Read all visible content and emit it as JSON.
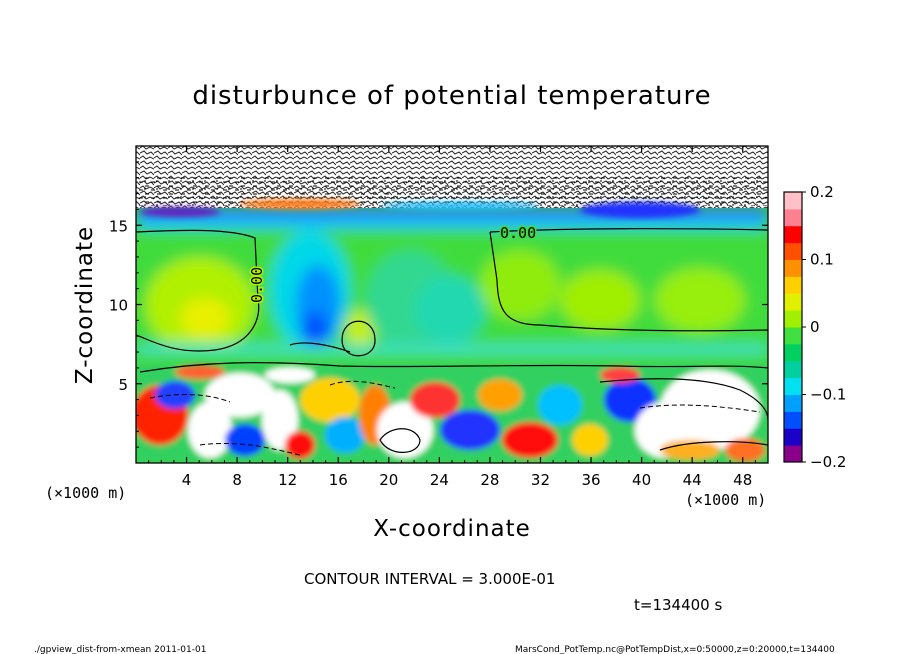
{
  "chart_data": {
    "type": "heatmap",
    "title": "disturbunce of potential temperature",
    "xlabel": "X-coordinate",
    "ylabel": "Z-coordinate",
    "x_unit_left": "(×1000 m)",
    "x_unit_right": "(×1000 m)",
    "xlim": [
      0,
      50
    ],
    "ylim": [
      0,
      20
    ],
    "xticks": [
      4,
      8,
      12,
      16,
      20,
      24,
      28,
      32,
      36,
      40,
      44,
      48
    ],
    "xtick_labels": [
      "4",
      "8",
      "12",
      "16",
      "20",
      "24",
      "28",
      "32",
      "36",
      "40",
      "44",
      "48"
    ],
    "yticks": [
      5,
      10,
      15
    ],
    "ytick_labels": [
      "5",
      "10",
      "15"
    ],
    "colorbar": {
      "range": [
        -0.2,
        0.2
      ],
      "tick_values": [
        0.2,
        0.1,
        0,
        -0.1,
        -0.2
      ],
      "tick_labels": [
        "0.2",
        "0.1",
        "0",
        "−0.1",
        "−0.2"
      ],
      "colors": [
        "#8a008a",
        "#1c00c8",
        "#0050ff",
        "#00a0ff",
        "#00e0f0",
        "#00d0a0",
        "#00d060",
        "#40e040",
        "#a0f000",
        "#e0f000",
        "#ffd000",
        "#ff9000",
        "#ff5000",
        "#ff0000",
        "#ff8090",
        "#ffc0c8"
      ]
    },
    "contour_labels": [
      {
        "text": "0.00",
        "x": 29,
        "y": 14.6
      },
      {
        "text": "0.00",
        "x": 7.8,
        "y": 11.2,
        "rotate": -90
      }
    ],
    "contour_interval_text": "CONTOUR INTERVAL = 3.000E-01",
    "time_text": "t=134400 s"
  },
  "footer": {
    "left": "./gpview_dist-from-xmean  2011-01-01",
    "right": "MarsCond_PotTemp.nc@PotTempDist,x=0:50000,z=0:20000,t=134400"
  }
}
